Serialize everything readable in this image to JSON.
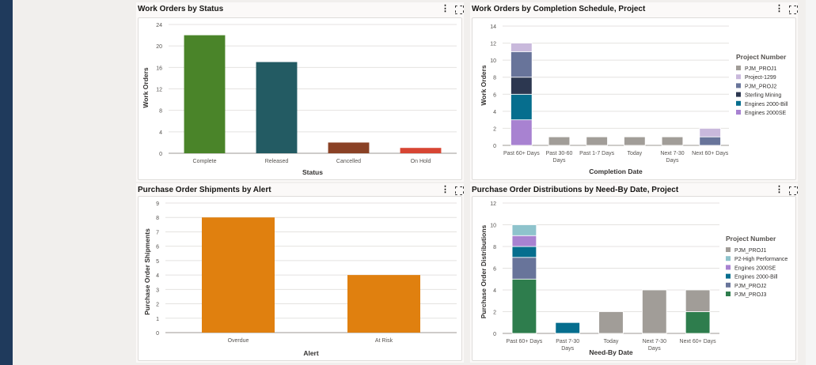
{
  "panels": [
    {
      "title": "Work Orders by Status",
      "chart_data": {
        "type": "bar",
        "categories": [
          "Complete",
          "Released",
          "Cancelled",
          "On Hold"
        ],
        "values": [
          22,
          17,
          2,
          1
        ],
        "colors": [
          "#4a8429",
          "#235b63",
          "#8a4125",
          "#d74533"
        ],
        "xlabel": "Status",
        "ylabel": "Work Orders",
        "ylim": [
          0,
          24
        ],
        "yticks": [
          0,
          4,
          8,
          12,
          16,
          20,
          24
        ]
      }
    },
    {
      "title": "Work Orders by Completion Schedule, Project",
      "chart_data": {
        "type": "bar",
        "stacked": true,
        "categories": [
          "Past 60+ Days",
          "Past 30-60 Days",
          "Past 1-7 Days",
          "Today",
          "Next 7-30 Days",
          "Next 60+ Days"
        ],
        "series": [
          {
            "name": "Engines 2000SE",
            "color": "#a882d1",
            "values": [
              3,
              0,
              0,
              0,
              0,
              0
            ]
          },
          {
            "name": "Engines 2000-Bill",
            "color": "#066e8e",
            "values": [
              3,
              0,
              0,
              0,
              0,
              0
            ]
          },
          {
            "name": "Sterling Mining",
            "color": "#2c3750",
            "values": [
              2,
              0,
              0,
              0,
              0,
              0
            ]
          },
          {
            "name": "PJM_PROJ2",
            "color": "#68749a",
            "values": [
              3,
              0,
              0,
              0,
              0,
              1
            ]
          },
          {
            "name": "Project-1299",
            "color": "#c9b9dc",
            "values": [
              1,
              0,
              0,
              0,
              0,
              1
            ]
          },
          {
            "name": "PJM_PROJ1",
            "color": "#a19d98",
            "values": [
              0,
              1,
              1,
              1,
              1,
              0
            ]
          }
        ],
        "xlabel": "Completion Date",
        "ylabel": "Work Orders",
        "ylim": [
          0,
          14
        ],
        "yticks": [
          0,
          2,
          4,
          6,
          8,
          10,
          12,
          14
        ],
        "legend_title": "Project Number",
        "legend_order": [
          "PJM_PROJ1",
          "Project-1299",
          "PJM_PROJ2",
          "Sterling Mining",
          "Engines 2000-Bill",
          "Engines 2000SE"
        ],
        "legend_position": "right"
      }
    },
    {
      "title": "Purchase Order Shipments by Alert",
      "chart_data": {
        "type": "bar",
        "categories": [
          "Overdue",
          "At Risk"
        ],
        "values": [
          8,
          4
        ],
        "colors": [
          "#e0800f",
          "#e0800f"
        ],
        "xlabel": "Alert",
        "ylabel": "Purchase Order Shipments",
        "ylim": [
          0,
          9
        ],
        "yticks": [
          0,
          1,
          2,
          3,
          4,
          5,
          6,
          7,
          8,
          9
        ]
      }
    },
    {
      "title": "Purchase Order Distributions by Need-By Date, Project",
      "chart_data": {
        "type": "bar",
        "stacked": true,
        "categories": [
          "Past 60+ Days",
          "Past 7-30 Days",
          "Today",
          "Next 7-30 Days",
          "Next 60+ Days"
        ],
        "series": [
          {
            "name": "PJM_PROJ3",
            "color": "#2e7d4d",
            "values": [
              5,
              0,
              0,
              0,
              2
            ]
          },
          {
            "name": "PJM_PROJ2",
            "color": "#68749a",
            "values": [
              2,
              0,
              0,
              0,
              0
            ]
          },
          {
            "name": "Engines 2000-Bill",
            "color": "#066e8e",
            "values": [
              1,
              1,
              0,
              0,
              0
            ]
          },
          {
            "name": "Engines 2000SE",
            "color": "#a882d1",
            "values": [
              1,
              0,
              0,
              0,
              0
            ]
          },
          {
            "name": "P2-High Performance",
            "color": "#8ec3cc",
            "values": [
              1,
              0,
              0,
              0,
              0
            ]
          },
          {
            "name": "PJM_PROJ1",
            "color": "#a19d98",
            "values": [
              0,
              0,
              2,
              4,
              2
            ]
          }
        ],
        "xlabel": "Need-By Date",
        "ylabel": "Purchase Order Distributions",
        "ylim": [
          0,
          12
        ],
        "yticks": [
          0,
          2,
          4,
          6,
          8,
          10,
          12
        ],
        "legend_title": "Project Number",
        "legend_order": [
          "PJM_PROJ1",
          "P2-High Performance",
          "Engines 2000SE",
          "Engines 2000-Bill",
          "PJM_PROJ2",
          "PJM_PROJ3"
        ],
        "legend_position": "right"
      }
    }
  ]
}
